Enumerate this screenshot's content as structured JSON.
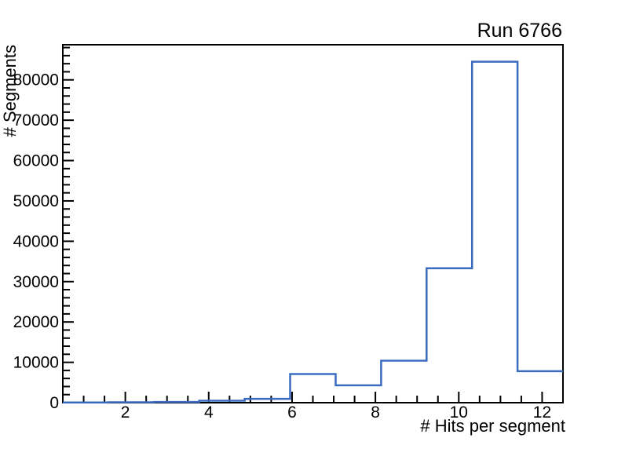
{
  "page": {
    "background": "#ffffff",
    "text_color": "#000000"
  },
  "chart_data": {
    "type": "bar",
    "style": "step-histogram-outline",
    "title": "Run 6766",
    "xlabel": "# Hits per segment",
    "ylabel": "# Segments",
    "xlim": [
      0.5,
      12.5
    ],
    "ylim": [
      0,
      88700
    ],
    "grid": false,
    "legend": "none",
    "line_color": "#3a6bbf",
    "frame_color": "#000000",
    "n_bins": 11,
    "bin_edges": [
      0.5,
      1.5909,
      2.6818,
      3.7727,
      4.8636,
      5.9545,
      7.0455,
      8.1364,
      9.2273,
      10.3182,
      11.4091,
      12.5
    ],
    "values": [
      30,
      90,
      170,
      480,
      950,
      7100,
      4300,
      10400,
      33300,
      84500,
      7800
    ],
    "x_major_ticks": [
      2,
      4,
      6,
      8,
      10,
      12
    ],
    "x_minor_step": 0.5,
    "y_major_ticks": [
      0,
      10000,
      20000,
      30000,
      40000,
      50000,
      60000,
      70000,
      80000
    ],
    "y_minor_step": 2000
  }
}
